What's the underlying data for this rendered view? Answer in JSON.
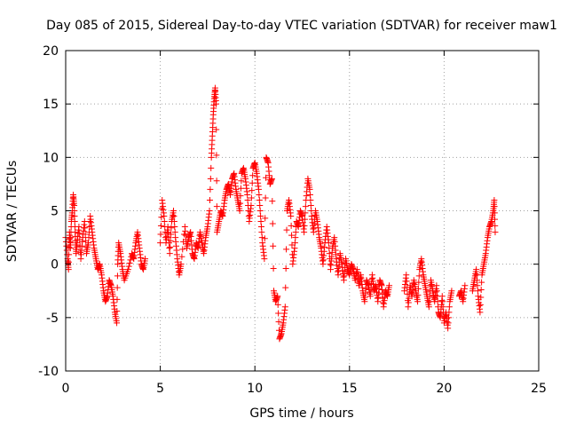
{
  "chart_data": {
    "type": "scatter",
    "title": "Day 085 of 2015, Sidereal Day-to-day VTEC variation (SDTVAR) for receiver maw1",
    "xlabel": "GPS time / hours",
    "ylabel": "SDTVAR / TECUs",
    "xlim": [
      0,
      25
    ],
    "ylim": [
      -10,
      20
    ],
    "xticks": [
      0,
      5,
      10,
      15,
      20,
      25
    ],
    "yticks": [
      -10,
      -5,
      0,
      5,
      10,
      15,
      20
    ],
    "xtick_labels": [
      "0",
      "5",
      "10",
      "15",
      "20",
      "25"
    ],
    "ytick_labels": [
      "-10",
      "-5",
      "0",
      "5",
      "10",
      "15",
      "20"
    ],
    "grid": true,
    "marker": "+",
    "color": "#ff0000",
    "series": [
      {
        "name": "SDTVAR",
        "points": [
          [
            0.0,
            2.5
          ],
          [
            0.1,
            0.5
          ],
          [
            0.15,
            -0.5
          ],
          [
            0.2,
            3.0
          ],
          [
            0.25,
            1.5
          ],
          [
            0.3,
            4.0
          ],
          [
            0.35,
            5.0
          ],
          [
            0.4,
            6.5
          ],
          [
            0.45,
            5.5
          ],
          [
            0.5,
            3.0
          ],
          [
            0.55,
            1.0
          ],
          [
            0.6,
            2.0
          ],
          [
            0.7,
            3.5
          ],
          [
            0.8,
            0.5
          ],
          [
            0.9,
            2.5
          ],
          [
            1.0,
            4.0
          ],
          [
            1.1,
            1.0
          ],
          [
            1.2,
            2.0
          ],
          [
            1.3,
            4.5
          ],
          [
            1.4,
            3.0
          ],
          [
            1.5,
            1.5
          ],
          [
            1.6,
            0.5
          ],
          [
            1.7,
            -0.5
          ],
          [
            1.8,
            0.0
          ],
          [
            1.9,
            -1.0
          ],
          [
            2.0,
            -2.5
          ],
          [
            2.1,
            -3.5
          ],
          [
            2.2,
            -3.0
          ],
          [
            2.3,
            -1.5
          ],
          [
            2.4,
            -2.0
          ],
          [
            2.5,
            -3.0
          ],
          [
            2.6,
            -4.5
          ],
          [
            2.7,
            -5.5
          ],
          [
            2.75,
            0.0
          ],
          [
            2.8,
            2.0
          ],
          [
            2.9,
            1.0
          ],
          [
            3.0,
            -0.5
          ],
          [
            3.1,
            -1.5
          ],
          [
            3.3,
            -0.5
          ],
          [
            3.5,
            1.0
          ],
          [
            3.6,
            0.5
          ],
          [
            3.7,
            2.0
          ],
          [
            3.8,
            3.0
          ],
          [
            3.9,
            1.5
          ],
          [
            4.0,
            0.0
          ],
          [
            4.1,
            -0.5
          ],
          [
            4.2,
            0.5
          ],
          [
            5.0,
            2.0
          ],
          [
            5.1,
            6.0
          ],
          [
            5.2,
            4.5
          ],
          [
            5.3,
            2.0
          ],
          [
            5.4,
            3.5
          ],
          [
            5.5,
            1.0
          ],
          [
            5.6,
            4.0
          ],
          [
            5.7,
            5.0
          ],
          [
            5.8,
            2.5
          ],
          [
            5.9,
            0.5
          ],
          [
            6.0,
            -1.0
          ],
          [
            6.1,
            0.0
          ],
          [
            6.3,
            3.5
          ],
          [
            6.4,
            1.5
          ],
          [
            6.5,
            2.5
          ],
          [
            6.6,
            3.0
          ],
          [
            6.7,
            1.0
          ],
          [
            6.8,
            0.5
          ],
          [
            6.9,
            2.0
          ],
          [
            7.0,
            1.5
          ],
          [
            7.1,
            3.0
          ],
          [
            7.2,
            2.0
          ],
          [
            7.3,
            1.0
          ],
          [
            7.4,
            2.5
          ],
          [
            7.5,
            3.5
          ],
          [
            7.6,
            5.0
          ],
          [
            7.7,
            10.0
          ],
          [
            7.75,
            12.0
          ],
          [
            7.8,
            14.0
          ],
          [
            7.85,
            15.5
          ],
          [
            7.9,
            16.5
          ],
          [
            7.95,
            15.0
          ],
          [
            8.0,
            3.0
          ],
          [
            8.1,
            4.0
          ],
          [
            8.2,
            5.0
          ],
          [
            8.3,
            4.5
          ],
          [
            8.4,
            6.0
          ],
          [
            8.5,
            7.0
          ],
          [
            8.6,
            7.5
          ],
          [
            8.7,
            6.5
          ],
          [
            8.8,
            8.0
          ],
          [
            8.9,
            8.5
          ],
          [
            9.0,
            7.0
          ],
          [
            9.1,
            6.0
          ],
          [
            9.2,
            5.0
          ],
          [
            9.3,
            8.5
          ],
          [
            9.4,
            9.0
          ],
          [
            9.5,
            8.0
          ],
          [
            9.6,
            6.5
          ],
          [
            9.7,
            4.0
          ],
          [
            9.8,
            5.5
          ],
          [
            9.9,
            9.0
          ],
          [
            10.0,
            9.5
          ],
          [
            10.1,
            8.5
          ],
          [
            10.2,
            7.0
          ],
          [
            10.3,
            4.5
          ],
          [
            10.4,
            2.0
          ],
          [
            10.5,
            0.5
          ],
          [
            10.6,
            10.0
          ],
          [
            10.7,
            9.5
          ],
          [
            10.8,
            7.5
          ],
          [
            10.9,
            8.0
          ],
          [
            11.0,
            -2.5
          ],
          [
            11.1,
            -3.5
          ],
          [
            11.2,
            -3.0
          ],
          [
            11.3,
            -7.0
          ],
          [
            11.4,
            -6.5
          ],
          [
            11.5,
            -5.5
          ],
          [
            11.6,
            -4.0
          ],
          [
            11.7,
            5.0
          ],
          [
            11.8,
            6.0
          ],
          [
            11.9,
            4.5
          ],
          [
            12.0,
            0.0
          ],
          [
            12.1,
            1.5
          ],
          [
            12.2,
            4.0
          ],
          [
            12.3,
            3.5
          ],
          [
            12.4,
            5.0
          ],
          [
            12.5,
            4.5
          ],
          [
            12.6,
            3.0
          ],
          [
            12.7,
            6.0
          ],
          [
            12.8,
            8.0
          ],
          [
            12.9,
            7.0
          ],
          [
            13.0,
            4.5
          ],
          [
            13.1,
            3.0
          ],
          [
            13.2,
            5.0
          ],
          [
            13.3,
            4.0
          ],
          [
            13.4,
            2.5
          ],
          [
            13.5,
            1.5
          ],
          [
            13.6,
            0.0
          ],
          [
            13.7,
            2.0
          ],
          [
            13.8,
            3.5
          ],
          [
            13.9,
            2.0
          ],
          [
            14.0,
            -0.5
          ],
          [
            14.1,
            1.5
          ],
          [
            14.2,
            2.5
          ],
          [
            14.3,
            0.5
          ],
          [
            14.4,
            -1.0
          ],
          [
            14.5,
            1.0
          ],
          [
            14.6,
            0.0
          ],
          [
            14.7,
            -1.5
          ],
          [
            14.8,
            0.5
          ],
          [
            14.9,
            -0.5
          ],
          [
            15.0,
            -1.0
          ],
          [
            15.1,
            0.0
          ],
          [
            15.2,
            -0.5
          ],
          [
            15.3,
            -1.5
          ],
          [
            15.4,
            -0.5
          ],
          [
            15.5,
            -2.0
          ],
          [
            15.6,
            -1.0
          ],
          [
            15.7,
            -2.5
          ],
          [
            15.8,
            -3.5
          ],
          [
            15.9,
            -1.5
          ],
          [
            16.0,
            -2.0
          ],
          [
            16.1,
            -3.0
          ],
          [
            16.2,
            -1.0
          ],
          [
            16.3,
            -2.5
          ],
          [
            16.4,
            -2.0
          ],
          [
            16.5,
            -3.5
          ],
          [
            16.6,
            -1.5
          ],
          [
            16.7,
            -2.0
          ],
          [
            16.8,
            -4.0
          ],
          [
            16.9,
            -2.5
          ],
          [
            17.0,
            -3.0
          ],
          [
            17.1,
            -2.0
          ],
          [
            17.9,
            -2.5
          ],
          [
            18.0,
            -1.0
          ],
          [
            18.1,
            -4.0
          ],
          [
            18.2,
            -2.0
          ],
          [
            18.3,
            -3.0
          ],
          [
            18.4,
            -1.5
          ],
          [
            18.5,
            -2.5
          ],
          [
            18.6,
            -3.5
          ],
          [
            18.7,
            -0.5
          ],
          [
            18.8,
            0.5
          ],
          [
            18.9,
            -1.0
          ],
          [
            19.0,
            -2.0
          ],
          [
            19.1,
            -3.0
          ],
          [
            19.2,
            -4.0
          ],
          [
            19.3,
            -1.5
          ],
          [
            19.4,
            -2.5
          ],
          [
            19.5,
            -3.5
          ],
          [
            19.6,
            -2.0
          ],
          [
            19.7,
            -4.5
          ],
          [
            19.8,
            -5.0
          ],
          [
            19.9,
            -3.0
          ],
          [
            20.0,
            -5.5
          ],
          [
            20.1,
            -4.5
          ],
          [
            20.2,
            -6.0
          ],
          [
            20.3,
            -3.5
          ],
          [
            20.4,
            -2.5
          ],
          [
            20.8,
            -3.0
          ],
          [
            20.9,
            -2.5
          ],
          [
            21.0,
            -3.5
          ],
          [
            21.1,
            -2.0
          ],
          [
            21.5,
            -2.5
          ],
          [
            21.6,
            -1.5
          ],
          [
            21.7,
            -0.5
          ],
          [
            21.8,
            -3.0
          ],
          [
            21.9,
            -4.5
          ],
          [
            22.0,
            -1.0
          ],
          [
            22.1,
            0.0
          ],
          [
            22.2,
            1.0
          ],
          [
            22.3,
            2.5
          ],
          [
            22.4,
            3.5
          ],
          [
            22.5,
            4.0
          ],
          [
            22.6,
            5.0
          ],
          [
            22.65,
            6.0
          ],
          [
            22.7,
            3.0
          ]
        ]
      }
    ]
  }
}
